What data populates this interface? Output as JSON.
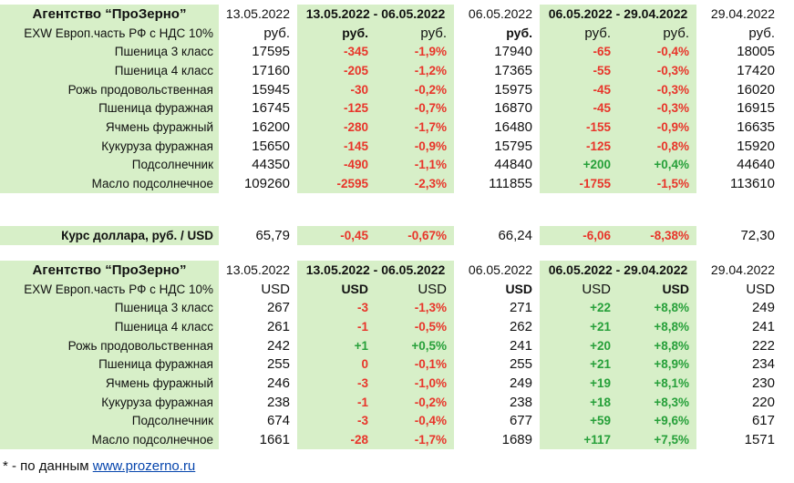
{
  "section_rub": {
    "title": "Агентство “ПроЗерно”",
    "date1": "13.05.2022",
    "range1": "13.05.2022 - 06.05.2022",
    "date2": "06.05.2022",
    "range2": "06.05.2022 - 29.04.2022",
    "date3": "29.04.2022",
    "basis_label": "EXW Европ.часть РФ с НДС 10%",
    "units": [
      "руб.",
      "руб.",
      "руб.",
      "руб.",
      "руб.",
      "руб.",
      "руб."
    ],
    "rows": [
      {
        "name": "Пшеница 3 класс",
        "v1": "17595",
        "d1": "-345",
        "p1": "-1,9%",
        "v2": "17940",
        "d2": "-65",
        "p2": "-0,4%",
        "v3": "18005"
      },
      {
        "name": "Пшеница 4 класс",
        "v1": "17160",
        "d1": "-205",
        "p1": "-1,2%",
        "v2": "17365",
        "d2": "-55",
        "p2": "-0,3%",
        "v3": "17420"
      },
      {
        "name": "Рожь продовольственная",
        "v1": "15945",
        "d1": "-30",
        "p1": "-0,2%",
        "v2": "15975",
        "d2": "-45",
        "p2": "-0,3%",
        "v3": "16020"
      },
      {
        "name": "Пшеница фуражная",
        "v1": "16745",
        "d1": "-125",
        "p1": "-0,7%",
        "v2": "16870",
        "d2": "-45",
        "p2": "-0,3%",
        "v3": "16915"
      },
      {
        "name": "Ячмень фуражный",
        "v1": "16200",
        "d1": "-280",
        "p1": "-1,7%",
        "v2": "16480",
        "d2": "-155",
        "p2": "-0,9%",
        "v3": "16635"
      },
      {
        "name": "Кукуруза фуражная",
        "v1": "15650",
        "d1": "-145",
        "p1": "-0,9%",
        "v2": "15795",
        "d2": "-125",
        "p2": "-0,8%",
        "v3": "15920"
      },
      {
        "name": "Подсолнечник",
        "v1": "44350",
        "d1": "-490",
        "p1": "-1,1%",
        "v2": "44840",
        "d2": "+200",
        "p2": "+0,4%",
        "v3": "44640"
      },
      {
        "name": "Масло подсолнечное",
        "v1": "109260",
        "d1": "-2595",
        "p1": "-2,3%",
        "v2": "111855",
        "d2": "-1755",
        "p2": "-1,5%",
        "v3": "113610"
      }
    ]
  },
  "exchange": {
    "label": "Курс доллара, руб. / USD",
    "v1": "65,79",
    "d1": "-0,45",
    "p1": "-0,67%",
    "v2": "66,24",
    "d2": "-6,06",
    "p2": "-8,38%",
    "v3": "72,30"
  },
  "section_usd": {
    "title": "Агентство “ПроЗерно”",
    "date1": "13.05.2022",
    "range1": "13.05.2022 - 06.05.2022",
    "date2": "06.05.2022",
    "range2": "06.05.2022 - 29.04.2022",
    "date3": "29.04.2022",
    "basis_label": "EXW Европ.часть РФ с НДС 10%",
    "units": [
      "USD",
      "USD",
      "USD",
      "USD",
      "USD",
      "USD",
      "USD"
    ],
    "rows": [
      {
        "name": "Пшеница 3 класс",
        "v1": "267",
        "d1": "-3",
        "p1": "-1,3%",
        "v2": "271",
        "d2": "+22",
        "p2": "+8,8%",
        "v3": "249"
      },
      {
        "name": "Пшеница 4 класс",
        "v1": "261",
        "d1": "-1",
        "p1": "-0,5%",
        "v2": "262",
        "d2": "+21",
        "p2": "+8,8%",
        "v3": "241"
      },
      {
        "name": "Рожь продовольственная",
        "v1": "242",
        "d1": "+1",
        "p1": "+0,5%",
        "v2": "241",
        "d2": "+20",
        "p2": "+8,8%",
        "v3": "222"
      },
      {
        "name": "Пшеница фуражная",
        "v1": "255",
        "d1": "0",
        "p1": "-0,1%",
        "v2": "255",
        "d2": "+21",
        "p2": "+8,9%",
        "v3": "234"
      },
      {
        "name": "Ячмень фуражный",
        "v1": "246",
        "d1": "-3",
        "p1": "-1,0%",
        "v2": "249",
        "d2": "+19",
        "p2": "+8,1%",
        "v3": "230"
      },
      {
        "name": "Кукуруза фуражная",
        "v1": "238",
        "d1": "-1",
        "p1": "-0,2%",
        "v2": "238",
        "d2": "+18",
        "p2": "+8,3%",
        "v3": "220"
      },
      {
        "name": "Подсолнечник",
        "v1": "674",
        "d1": "-3",
        "p1": "-0,4%",
        "v2": "677",
        "d2": "+59",
        "p2": "+9,6%",
        "v3": "617"
      },
      {
        "name": "Масло подсолнечное",
        "v1": "1661",
        "d1": "-28",
        "p1": "-1,7%",
        "v2": "1689",
        "d2": "+117",
        "p2": "+7,5%",
        "v3": "1571"
      }
    ]
  },
  "footer": {
    "note": "* - по данным ",
    "link_text": "www.prozerno.ru"
  },
  "colors": {
    "green_fill": "#d7efc8",
    "negative": "#e8352a",
    "positive": "#27a03a"
  }
}
